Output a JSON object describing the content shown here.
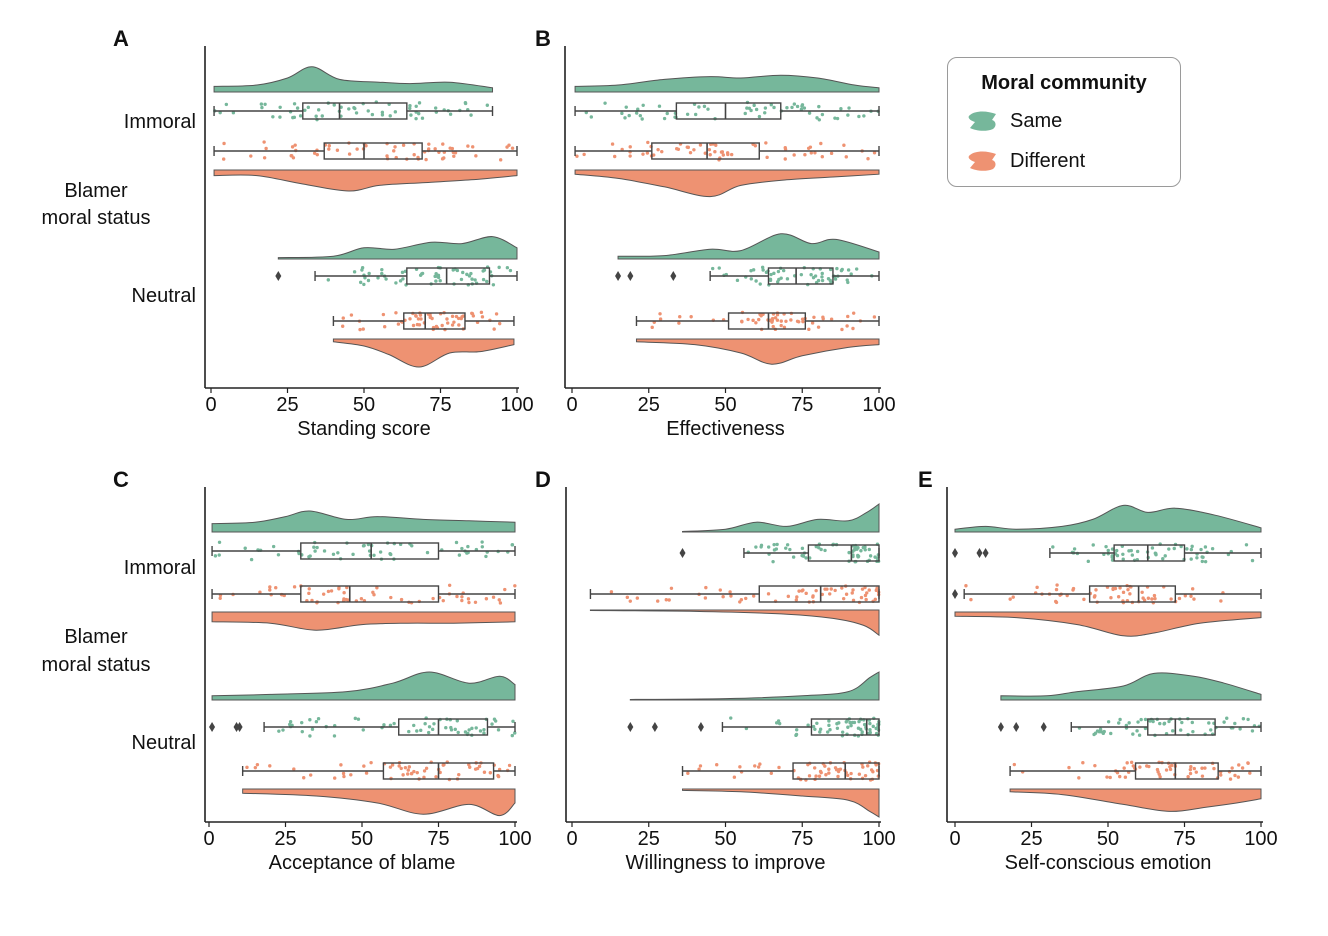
{
  "legend": {
    "title": "Moral community",
    "items": [
      {
        "label": "Same",
        "color": "#76b79b"
      },
      {
        "label": "Different",
        "color": "#ee9272"
      }
    ]
  },
  "chart_data": [
    {
      "panel": "A",
      "type": "raincloud",
      "xlabel": "Standing score",
      "ylabel": "Blamer moral status",
      "xlim": [
        0,
        100
      ],
      "xticks": [
        0,
        25,
        50,
        75,
        100
      ],
      "groups": [
        "Immoral",
        "Neutral"
      ],
      "series": [
        {
          "name": "Same",
          "group": "Immoral",
          "box": {
            "whisker_low": 1,
            "q1": 30,
            "median": 42,
            "q3": 64,
            "whisker_high": 92
          },
          "outliers": [],
          "density": [
            [
              1,
              0.2
            ],
            [
              15,
              0.25
            ],
            [
              25,
              0.5
            ],
            [
              33,
              0.9
            ],
            [
              42,
              0.45
            ],
            [
              55,
              0.35
            ],
            [
              65,
              0.3
            ],
            [
              78,
              0.35
            ],
            [
              92,
              0.15
            ]
          ]
        },
        {
          "name": "Different",
          "group": "Immoral",
          "box": {
            "whisker_low": 1,
            "q1": 37,
            "median": 50,
            "q3": 69,
            "whisker_high": 100
          },
          "outliers": [],
          "density": [
            [
              1,
              0.2
            ],
            [
              15,
              0.2
            ],
            [
              30,
              0.5
            ],
            [
              45,
              0.75
            ],
            [
              55,
              0.55
            ],
            [
              70,
              0.45
            ],
            [
              85,
              0.35
            ],
            [
              100,
              0.2
            ]
          ]
        },
        {
          "name": "Same",
          "group": "Neutral",
          "box": {
            "whisker_low": 34,
            "q1": 64,
            "median": 77,
            "q3": 91,
            "whisker_high": 100
          },
          "outliers": [
            22
          ],
          "density": [
            [
              22,
              0.05
            ],
            [
              40,
              0.1
            ],
            [
              50,
              0.4
            ],
            [
              60,
              0.35
            ],
            [
              72,
              0.6
            ],
            [
              82,
              0.55
            ],
            [
              92,
              0.8
            ],
            [
              100,
              0.4
            ]
          ]
        },
        {
          "name": "Different",
          "group": "Neutral",
          "box": {
            "whisker_low": 40,
            "q1": 63,
            "median": 70,
            "q3": 83,
            "whisker_high": 99
          },
          "outliers": [],
          "density": [
            [
              40,
              0.1
            ],
            [
              50,
              0.25
            ],
            [
              58,
              0.55
            ],
            [
              68,
              1.0
            ],
            [
              78,
              0.5
            ],
            [
              88,
              0.45
            ],
            [
              99,
              0.2
            ]
          ]
        }
      ]
    },
    {
      "panel": "B",
      "type": "raincloud",
      "xlabel": "Effectiveness",
      "ylabel": "",
      "xlim": [
        0,
        100
      ],
      "xticks": [
        0,
        25,
        50,
        75,
        100
      ],
      "groups": [
        "Immoral",
        "Neutral"
      ],
      "series": [
        {
          "name": "Same",
          "group": "Immoral",
          "box": {
            "whisker_low": 1,
            "q1": 34,
            "median": 50,
            "q3": 68,
            "whisker_high": 100
          },
          "outliers": [],
          "density": [
            [
              1,
              0.2
            ],
            [
              15,
              0.25
            ],
            [
              30,
              0.45
            ],
            [
              45,
              0.55
            ],
            [
              55,
              0.5
            ],
            [
              68,
              0.6
            ],
            [
              80,
              0.5
            ],
            [
              92,
              0.25
            ],
            [
              100,
              0.15
            ]
          ]
        },
        {
          "name": "Different",
          "group": "Immoral",
          "box": {
            "whisker_low": 1,
            "q1": 26,
            "median": 44,
            "q3": 61,
            "whisker_high": 100
          },
          "outliers": [],
          "density": [
            [
              1,
              0.15
            ],
            [
              15,
              0.3
            ],
            [
              30,
              0.6
            ],
            [
              45,
              0.95
            ],
            [
              55,
              0.55
            ],
            [
              70,
              0.35
            ],
            [
              85,
              0.25
            ],
            [
              100,
              0.15
            ]
          ]
        },
        {
          "name": "Same",
          "group": "Neutral",
          "box": {
            "whisker_low": 45,
            "q1": 64,
            "median": 73,
            "q3": 85,
            "whisker_high": 100
          },
          "outliers": [
            15,
            19,
            33
          ],
          "density": [
            [
              15,
              0.1
            ],
            [
              30,
              0.12
            ],
            [
              45,
              0.35
            ],
            [
              55,
              0.3
            ],
            [
              68,
              0.9
            ],
            [
              78,
              0.55
            ],
            [
              86,
              0.7
            ],
            [
              100,
              0.25
            ]
          ]
        },
        {
          "name": "Different",
          "group": "Neutral",
          "box": {
            "whisker_low": 21,
            "q1": 51,
            "median": 64,
            "q3": 76,
            "whisker_high": 100
          },
          "outliers": [],
          "density": [
            [
              21,
              0.1
            ],
            [
              40,
              0.2
            ],
            [
              55,
              0.5
            ],
            [
              65,
              0.9
            ],
            [
              75,
              0.6
            ],
            [
              90,
              0.3
            ],
            [
              100,
              0.2
            ]
          ]
        }
      ]
    },
    {
      "panel": "C",
      "type": "raincloud",
      "xlabel": "Acceptance of blame",
      "ylabel": "Blamer moral status",
      "xlim": [
        0,
        100
      ],
      "xticks": [
        0,
        25,
        50,
        75,
        100
      ],
      "groups": [
        "Immoral",
        "Neutral"
      ],
      "series": [
        {
          "name": "Same",
          "group": "Immoral",
          "box": {
            "whisker_low": 1,
            "q1": 30,
            "median": 53,
            "q3": 75,
            "whisker_high": 100
          },
          "outliers": [],
          "density": [
            [
              1,
              0.3
            ],
            [
              15,
              0.35
            ],
            [
              25,
              0.55
            ],
            [
              33,
              0.75
            ],
            [
              45,
              0.45
            ],
            [
              55,
              0.55
            ],
            [
              70,
              0.45
            ],
            [
              85,
              0.4
            ],
            [
              100,
              0.35
            ]
          ]
        },
        {
          "name": "Different",
          "group": "Immoral",
          "box": {
            "whisker_low": 1,
            "q1": 30,
            "median": 46,
            "q3": 75,
            "whisker_high": 100
          },
          "outliers": [],
          "density": [
            [
              1,
              0.35
            ],
            [
              20,
              0.4
            ],
            [
              35,
              0.65
            ],
            [
              50,
              0.45
            ],
            [
              65,
              0.4
            ],
            [
              80,
              0.4
            ],
            [
              100,
              0.35
            ]
          ]
        },
        {
          "name": "Same",
          "group": "Neutral",
          "box": {
            "whisker_low": 18,
            "q1": 62,
            "median": 75,
            "q3": 91,
            "whisker_high": 100
          },
          "outliers": [
            1,
            9,
            10
          ],
          "density": [
            [
              1,
              0.15
            ],
            [
              20,
              0.2
            ],
            [
              45,
              0.3
            ],
            [
              60,
              0.6
            ],
            [
              72,
              1.0
            ],
            [
              85,
              0.6
            ],
            [
              95,
              0.85
            ],
            [
              100,
              0.55
            ]
          ]
        },
        {
          "name": "Different",
          "group": "Neutral",
          "box": {
            "whisker_low": 11,
            "q1": 57,
            "median": 75,
            "q3": 93,
            "whisker_high": 100
          },
          "outliers": [],
          "density": [
            [
              11,
              0.15
            ],
            [
              35,
              0.25
            ],
            [
              55,
              0.5
            ],
            [
              70,
              0.9
            ],
            [
              85,
              0.55
            ],
            [
              95,
              0.95
            ],
            [
              100,
              0.5
            ]
          ]
        }
      ]
    },
    {
      "panel": "D",
      "type": "raincloud",
      "xlabel": "Willingness to improve",
      "ylabel": "",
      "xlim": [
        0,
        100
      ],
      "xticks": [
        0,
        25,
        50,
        75,
        100
      ],
      "groups": [
        "Immoral",
        "Neutral"
      ],
      "series": [
        {
          "name": "Same",
          "group": "Immoral",
          "box": {
            "whisker_low": 56,
            "q1": 77,
            "median": 91,
            "q3": 100,
            "whisker_high": 100
          },
          "outliers": [
            36
          ],
          "density": [
            [
              36,
              0.02
            ],
            [
              50,
              0.1
            ],
            [
              60,
              0.35
            ],
            [
              70,
              0.2
            ],
            [
              80,
              0.45
            ],
            [
              90,
              0.4
            ],
            [
              96,
              0.7
            ],
            [
              100,
              1.0
            ]
          ]
        },
        {
          "name": "Different",
          "group": "Immoral",
          "box": {
            "whisker_low": 6,
            "q1": 61,
            "median": 81,
            "q3": 100,
            "whisker_high": 100
          },
          "outliers": [],
          "density": [
            [
              6,
              0.02
            ],
            [
              40,
              0.05
            ],
            [
              70,
              0.15
            ],
            [
              85,
              0.3
            ],
            [
              95,
              0.55
            ],
            [
              100,
              0.9
            ]
          ]
        },
        {
          "name": "Same",
          "group": "Neutral",
          "box": {
            "whisker_low": 49,
            "q1": 78,
            "median": 96,
            "q3": 100,
            "whisker_high": 100
          },
          "outliers": [
            19,
            27,
            42
          ],
          "density": [
            [
              19,
              0.02
            ],
            [
              50,
              0.05
            ],
            [
              75,
              0.15
            ],
            [
              90,
              0.3
            ],
            [
              97,
              0.8
            ],
            [
              100,
              1.0
            ]
          ]
        },
        {
          "name": "Different",
          "group": "Neutral",
          "box": {
            "whisker_low": 36,
            "q1": 72,
            "median": 89,
            "q3": 100,
            "whisker_high": 100
          },
          "outliers": [],
          "density": [
            [
              36,
              0.05
            ],
            [
              55,
              0.1
            ],
            [
              75,
              0.25
            ],
            [
              90,
              0.4
            ],
            [
              97,
              0.8
            ],
            [
              100,
              1.0
            ]
          ]
        }
      ]
    },
    {
      "panel": "E",
      "type": "raincloud",
      "xlabel": "Self-conscious emotion",
      "ylabel": "",
      "xlim": [
        0,
        100
      ],
      "xticks": [
        0,
        25,
        50,
        75,
        100
      ],
      "groups": [
        "Immoral",
        "Neutral"
      ],
      "series": [
        {
          "name": "Same",
          "group": "Immoral",
          "box": {
            "whisker_low": 31,
            "q1": 52,
            "median": 63,
            "q3": 75,
            "whisker_high": 100
          },
          "outliers": [
            0,
            8,
            10
          ],
          "density": [
            [
              0,
              0.1
            ],
            [
              10,
              0.2
            ],
            [
              20,
              0.1
            ],
            [
              35,
              0.2
            ],
            [
              45,
              0.45
            ],
            [
              55,
              0.95
            ],
            [
              63,
              0.7
            ],
            [
              72,
              0.85
            ],
            [
              85,
              0.6
            ],
            [
              100,
              0.15
            ]
          ]
        },
        {
          "name": "Different",
          "group": "Immoral",
          "box": {
            "whisker_low": 3,
            "q1": 44,
            "median": 60,
            "q3": 72,
            "whisker_high": 100
          },
          "outliers": [
            0
          ],
          "density": [
            [
              0,
              0.15
            ],
            [
              20,
              0.2
            ],
            [
              40,
              0.45
            ],
            [
              55,
              0.85
            ],
            [
              65,
              0.75
            ],
            [
              80,
              0.4
            ],
            [
              100,
              0.2
            ]
          ]
        },
        {
          "name": "Same",
          "group": "Neutral",
          "box": {
            "whisker_low": 38,
            "q1": 63,
            "median": 72,
            "q3": 85,
            "whisker_high": 100
          },
          "outliers": [
            15,
            20,
            29
          ],
          "density": [
            [
              15,
              0.15
            ],
            [
              30,
              0.15
            ],
            [
              40,
              0.3
            ],
            [
              55,
              0.5
            ],
            [
              65,
              0.95
            ],
            [
              78,
              0.85
            ],
            [
              88,
              0.6
            ],
            [
              100,
              0.2
            ]
          ]
        },
        {
          "name": "Different",
          "group": "Neutral",
          "box": {
            "whisker_low": 18,
            "q1": 59,
            "median": 72,
            "q3": 86,
            "whisker_high": 100
          },
          "outliers": [],
          "density": [
            [
              18,
              0.1
            ],
            [
              35,
              0.2
            ],
            [
              55,
              0.55
            ],
            [
              70,
              0.8
            ],
            [
              82,
              0.65
            ],
            [
              92,
              0.5
            ],
            [
              100,
              0.35
            ]
          ]
        }
      ]
    }
  ]
}
